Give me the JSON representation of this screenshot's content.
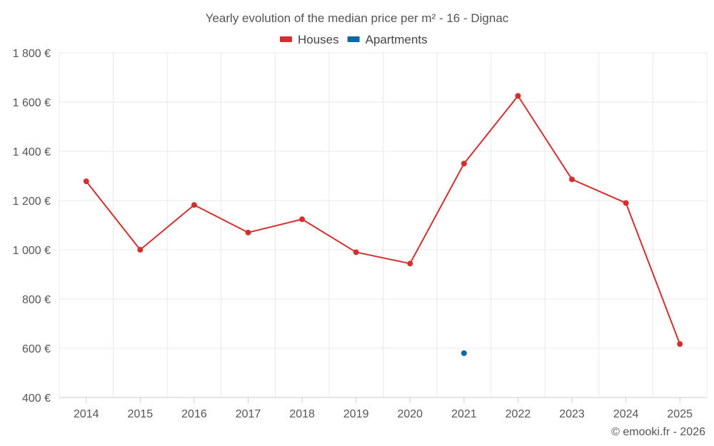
{
  "chart_data": {
    "type": "line",
    "title": "Yearly evolution of the median price per m² - 16 - Dignac",
    "categories": [
      "2014",
      "2015",
      "2016",
      "2017",
      "2018",
      "2019",
      "2020",
      "2021",
      "2022",
      "2023",
      "2024",
      "2025"
    ],
    "series": [
      {
        "name": "Houses",
        "color": "#d32f2f",
        "values": [
          1278,
          1000,
          1182,
          1070,
          1124,
          990,
          944,
          1350,
          1625,
          1286,
          1190,
          617
        ]
      },
      {
        "name": "Apartments",
        "color": "#0b6aa2",
        "values": [
          null,
          null,
          null,
          null,
          null,
          null,
          null,
          580,
          null,
          null,
          null,
          null
        ]
      }
    ],
    "ylim": [
      400,
      1800
    ],
    "yticks": [
      400,
      600,
      800,
      1000,
      1200,
      1400,
      1600,
      1800
    ],
    "ytick_labels": [
      "400 €",
      "600 €",
      "800 €",
      "1 000 €",
      "1 200 €",
      "1 400 €",
      "1 600 €",
      "1 800 €"
    ],
    "xlabel": "",
    "ylabel": "",
    "grid": true,
    "legend_position": "top-center"
  },
  "footer": {
    "copyright": "© emooki.fr - 2026"
  }
}
